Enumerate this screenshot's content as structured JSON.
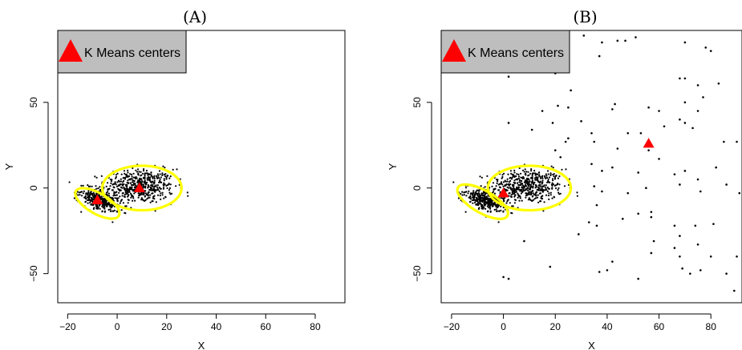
{
  "colors": {
    "points": "#000000",
    "center": "#ff0000",
    "ellipse": "#ffff00",
    "legend_bg": "#bebebe"
  },
  "chart_data": [
    {
      "type": "scatter",
      "title": "(A)",
      "xlabel": "X",
      "ylabel": "Y",
      "xlim": [
        -24,
        92
      ],
      "ylim": [
        -67,
        92
      ],
      "xticks": [
        -20,
        0,
        20,
        40,
        60,
        80
      ],
      "yticks": [
        -50,
        0,
        50
      ],
      "legend": {
        "label": "K Means centers",
        "placement": "top-left",
        "marker": "red-triangle"
      },
      "clusters": [
        {
          "center": [
            9,
            1
          ],
          "spread": [
            7,
            5
          ],
          "rotation_deg": 0,
          "n_points": 500
        },
        {
          "center": [
            -7,
            -7
          ],
          "spread": [
            4.3,
            2.6
          ],
          "rotation_deg": -35,
          "n_points": 340
        }
      ],
      "outliers": [],
      "kmeans_centers": [
        {
          "x": 9,
          "y": 0
        },
        {
          "x": -8,
          "y": -7
        }
      ],
      "ellipses": [
        {
          "cx": 10,
          "cy": 0,
          "rx": 16,
          "ry": 13,
          "rotation_deg": 0
        },
        {
          "cx": -8,
          "cy": -9,
          "rx": 10,
          "ry": 6,
          "rotation_deg": -30
        }
      ]
    },
    {
      "type": "scatter",
      "title": "(B)",
      "xlabel": "X",
      "ylabel": "Y",
      "xlim": [
        -24,
        92
      ],
      "ylim": [
        -67,
        92
      ],
      "xticks": [
        -20,
        0,
        20,
        40,
        60,
        80
      ],
      "yticks": [
        -50,
        0,
        50
      ],
      "legend": {
        "label": "K Means centers",
        "placement": "top-left",
        "marker": "red-triangle"
      },
      "clusters": [
        {
          "center": [
            9,
            1
          ],
          "spread": [
            7,
            5
          ],
          "rotation_deg": 0,
          "n_points": 500
        },
        {
          "center": [
            -7,
            -7
          ],
          "spread": [
            4.3,
            2.6
          ],
          "rotation_deg": -35,
          "n_points": 340
        }
      ],
      "outliers": [
        [
          31,
          89
        ],
        [
          38,
          85
        ],
        [
          44,
          86
        ],
        [
          47,
          86
        ],
        [
          51,
          88
        ],
        [
          70,
          85
        ],
        [
          78,
          82
        ],
        [
          80,
          80
        ],
        [
          2,
          65
        ],
        [
          20,
          67
        ],
        [
          37,
          77
        ],
        [
          68,
          64
        ],
        [
          70,
          64
        ],
        [
          75,
          60
        ],
        [
          83,
          61
        ],
        [
          26,
          57
        ],
        [
          21,
          48
        ],
        [
          25,
          47
        ],
        [
          43,
          49
        ],
        [
          42,
          46
        ],
        [
          70,
          50
        ],
        [
          77,
          53
        ],
        [
          56,
          47
        ],
        [
          60,
          45
        ],
        [
          15,
          45
        ],
        [
          75,
          45
        ],
        [
          68,
          40
        ],
        [
          70,
          38
        ],
        [
          2,
          38
        ],
        [
          11,
          34
        ],
        [
          19,
          38
        ],
        [
          30,
          39
        ],
        [
          48,
          32
        ],
        [
          53,
          32
        ],
        [
          62,
          36
        ],
        [
          73,
          35
        ],
        [
          24,
          27
        ],
        [
          25,
          29
        ],
        [
          34,
          32
        ],
        [
          35,
          27
        ],
        [
          44,
          23
        ],
        [
          56,
          22
        ],
        [
          60,
          17
        ],
        [
          85,
          27
        ],
        [
          90,
          27
        ],
        [
          20,
          22
        ],
        [
          22,
          18
        ],
        [
          34,
          14
        ],
        [
          38,
          10
        ],
        [
          42,
          12
        ],
        [
          52,
          9
        ],
        [
          66,
          8
        ],
        [
          70,
          10
        ],
        [
          75,
          5
        ],
        [
          82,
          12
        ],
        [
          86,
          2
        ],
        [
          35,
          1
        ],
        [
          38,
          -2
        ],
        [
          48,
          -3
        ],
        [
          55,
          0
        ],
        [
          68,
          2
        ],
        [
          76,
          -2
        ],
        [
          91,
          -3
        ],
        [
          36,
          -10
        ],
        [
          33,
          -20
        ],
        [
          36,
          -22
        ],
        [
          46,
          -18
        ],
        [
          52,
          -15
        ],
        [
          57,
          -14
        ],
        [
          57,
          -17
        ],
        [
          66,
          -22
        ],
        [
          74,
          -22
        ],
        [
          81,
          -21
        ],
        [
          29,
          -27
        ],
        [
          68,
          -28
        ],
        [
          58,
          -31
        ],
        [
          75,
          -33
        ],
        [
          66,
          -35
        ],
        [
          57,
          -38
        ],
        [
          68,
          -40
        ],
        [
          80,
          -40
        ],
        [
          90,
          -40
        ],
        [
          8,
          -31
        ],
        [
          18,
          -46
        ],
        [
          42,
          -43
        ],
        [
          40,
          -48
        ],
        [
          37,
          -49
        ],
        [
          69,
          -47
        ],
        [
          76,
          -48
        ],
        [
          72,
          -50
        ],
        [
          86,
          -50
        ],
        [
          89,
          -60
        ],
        [
          0,
          -52
        ],
        [
          2,
          -53
        ],
        [
          52,
          -53
        ]
      ],
      "kmeans_centers": [
        {
          "x": 0,
          "y": -3
        },
        {
          "x": 56,
          "y": 26
        }
      ],
      "ellipses": [
        {
          "cx": 10,
          "cy": 0,
          "rx": 16,
          "ry": 13,
          "rotation_deg": 0
        },
        {
          "cx": -8,
          "cy": -8,
          "rx": 11,
          "ry": 6.5,
          "rotation_deg": -30
        }
      ]
    }
  ]
}
